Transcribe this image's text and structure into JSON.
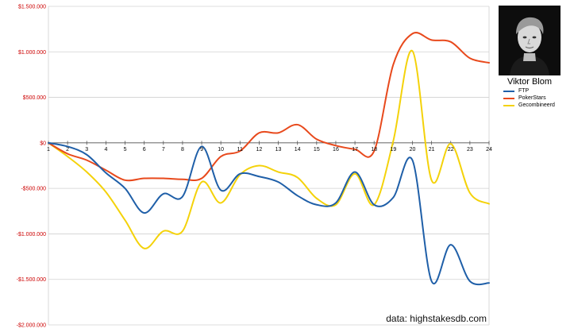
{
  "chart_data": {
    "type": "line",
    "title": "",
    "xlabel": "",
    "ylabel": "",
    "x": [
      1,
      2,
      3,
      4,
      5,
      6,
      7,
      8,
      9,
      10,
      11,
      12,
      13,
      14,
      15,
      16,
      17,
      18,
      19,
      20,
      21,
      22,
      23,
      24
    ],
    "x_tick_labels": [
      "1",
      "2",
      "3",
      "4",
      "5",
      "6",
      "7",
      "8",
      "9",
      "10",
      "11",
      "12",
      "13",
      "14",
      "15",
      "16",
      "17",
      "18",
      "19",
      "20",
      "21",
      "22",
      "23",
      "24"
    ],
    "ylim": [
      -2000000,
      1500000
    ],
    "y_ticks": [
      1500000,
      1000000,
      500000,
      0,
      -500000,
      -1000000,
      -1500000,
      -2000000
    ],
    "y_tick_labels": [
      "$1.500.000",
      "$1.000.000",
      "$500.000",
      "$0",
      "-$500.000",
      "-$1.000.000",
      "-$1.500.000",
      "-$2.000.000"
    ],
    "grid": true,
    "legend_position": "right",
    "series": [
      {
        "name": "FTP",
        "color": "#1f5fa8",
        "values": [
          0,
          -40000,
          -130000,
          -330000,
          -500000,
          -770000,
          -560000,
          -590000,
          -40000,
          -520000,
          -340000,
          -370000,
          -430000,
          -580000,
          -680000,
          -660000,
          -320000,
          -680000,
          -600000,
          -190000,
          -1520000,
          -1120000,
          -1520000,
          -1540000
        ]
      },
      {
        "name": "PokerStars",
        "color": "#e8491c",
        "values": [
          0,
          -120000,
          -190000,
          -300000,
          -410000,
          -390000,
          -390000,
          -400000,
          -390000,
          -150000,
          -90000,
          110000,
          110000,
          200000,
          40000,
          -30000,
          -70000,
          -90000,
          860000,
          1200000,
          1130000,
          1110000,
          930000,
          880000
        ]
      },
      {
        "name": "Gecombineerd",
        "color": "#f4d20a",
        "values": [
          0,
          -150000,
          -320000,
          -540000,
          -850000,
          -1160000,
          -970000,
          -970000,
          -430000,
          -660000,
          -350000,
          -250000,
          -320000,
          -380000,
          -610000,
          -680000,
          -340000,
          -680000,
          20000,
          1010000,
          -410000,
          -10000,
          -550000,
          -670000
        ]
      }
    ],
    "annotation": "data: highstakesdb.com"
  },
  "player": {
    "name": "Viktor Blom"
  }
}
